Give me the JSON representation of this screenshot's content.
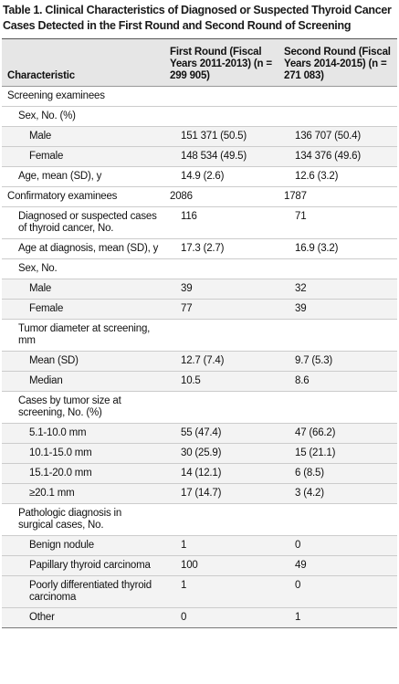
{
  "header": {
    "title": "Table 1. Clinical Characteristics of Diagnosed or Suspected Thyroid Cancer Cases Detected in the First Round and Second Round of Screening"
  },
  "table": {
    "columns": [
      "Characteristic",
      "First Round (Fiscal Years 2011-2013) (n = 299 905)",
      "Second Round (Fiscal Years 2014-2015) (n = 271 083)"
    ],
    "rows": [
      [
        "Screening examinees"
      ],
      [
        "Sex, No. (%)"
      ],
      [
        "Male",
        "151 371 (50.5)",
        "136 707 (50.4)"
      ],
      [
        "Female",
        "148 534 (49.5)",
        "134 376 (49.6)"
      ],
      [
        "Age, mean (SD), y",
        "14.9 (2.6)",
        "12.6 (3.2)"
      ],
      [
        "Confirmatory examinees",
        "2086",
        "1787"
      ],
      [
        "Diagnosed or suspected cases of thyroid cancer, No.",
        "116",
        "71"
      ],
      [
        "Age at diagnosis, mean (SD), y",
        "17.3 (2.7)",
        "16.9 (3.2)"
      ],
      [
        "Sex, No."
      ],
      [
        "Male",
        "39",
        "32"
      ],
      [
        "Female",
        "77",
        "39"
      ],
      [
        "Tumor diameter at screening, mm"
      ],
      [
        "Mean (SD)",
        "12.7 (7.4)",
        "9.7 (5.3)"
      ],
      [
        "Median",
        "10.5",
        "8.6"
      ],
      [
        "Cases by tumor size at screening, No. (%)"
      ],
      [
        "5.1-10.0 mm",
        "55 (47.4)",
        "47 (66.2)"
      ],
      [
        "10.1-15.0 mm",
        "30 (25.9)",
        "15 (21.1)"
      ],
      [
        "15.1-20.0 mm",
        "14 (12.1)",
        "6 (8.5)"
      ],
      [
        "≥20.1 mm",
        "17 (14.7)",
        "3 (4.2)"
      ],
      [
        "Pathologic diagnosis in surgical cases, No."
      ],
      [
        "Benign nodule",
        "1",
        "0"
      ],
      [
        "Papillary thyroid carcinoma",
        "100",
        "49"
      ],
      [
        "Poorly differentiated thyroid carcinoma",
        "1",
        "0"
      ],
      [
        "Other",
        "0",
        "1"
      ]
    ]
  }
}
